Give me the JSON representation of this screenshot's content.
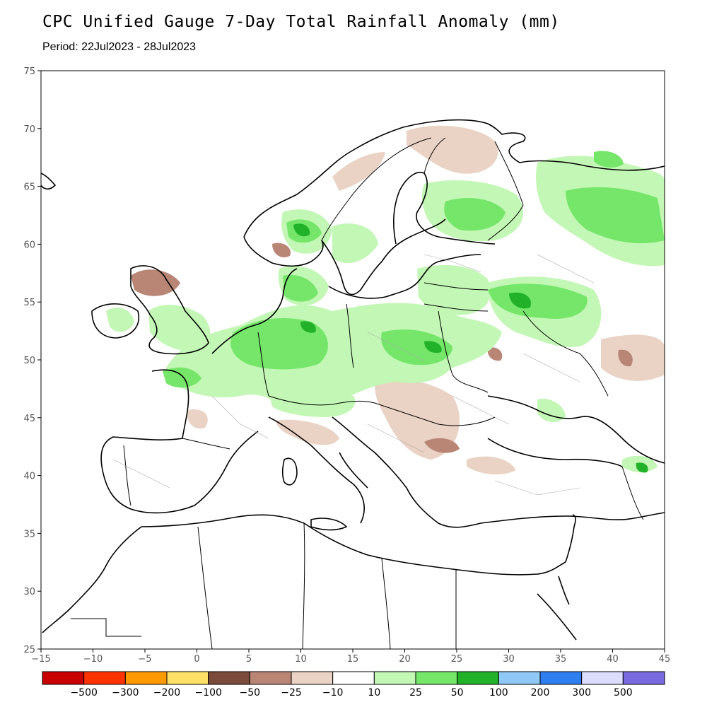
{
  "title": "CPC Unified Gauge 7-Day Total Rainfall Anomaly (mm)",
  "period": "Period: 22Jul2023 - 28Jul2023",
  "map": {
    "lon_range": [
      -15,
      45
    ],
    "lat_range": [
      25,
      75
    ],
    "lon_ticks": [
      "−15",
      "−10",
      "−5",
      "0",
      "5",
      "10",
      "15",
      "20",
      "25",
      "30",
      "35",
      "40",
      "45"
    ],
    "lat_ticks": [
      "25",
      "30",
      "35",
      "40",
      "45",
      "50",
      "55",
      "60",
      "65",
      "70",
      "75"
    ]
  },
  "legend": {
    "colors": [
      "#c80000",
      "#ff3300",
      "#ff9900",
      "#ffe066",
      "#7a4a3a",
      "#b98676",
      "#ead2c4",
      "#ffffff",
      "#c3f7b5",
      "#75e66a",
      "#22b22a",
      "#8fc8f5",
      "#2f7ff0",
      "#dcdcff",
      "#7a6ae0"
    ],
    "labels": [
      "−500",
      "−300",
      "−200",
      "−100",
      "−50",
      "−25",
      "−10",
      "10",
      "25",
      "50",
      "100",
      "200",
      "300",
      "500"
    ]
  },
  "colors": {
    "wet_light": "#c3f7b5",
    "wet_mid": "#75e66a",
    "wet_dark": "#22b22a",
    "dry_light": "#ead2c4",
    "dry_mid": "#b98676",
    "dry_dark": "#7a4a3a"
  }
}
